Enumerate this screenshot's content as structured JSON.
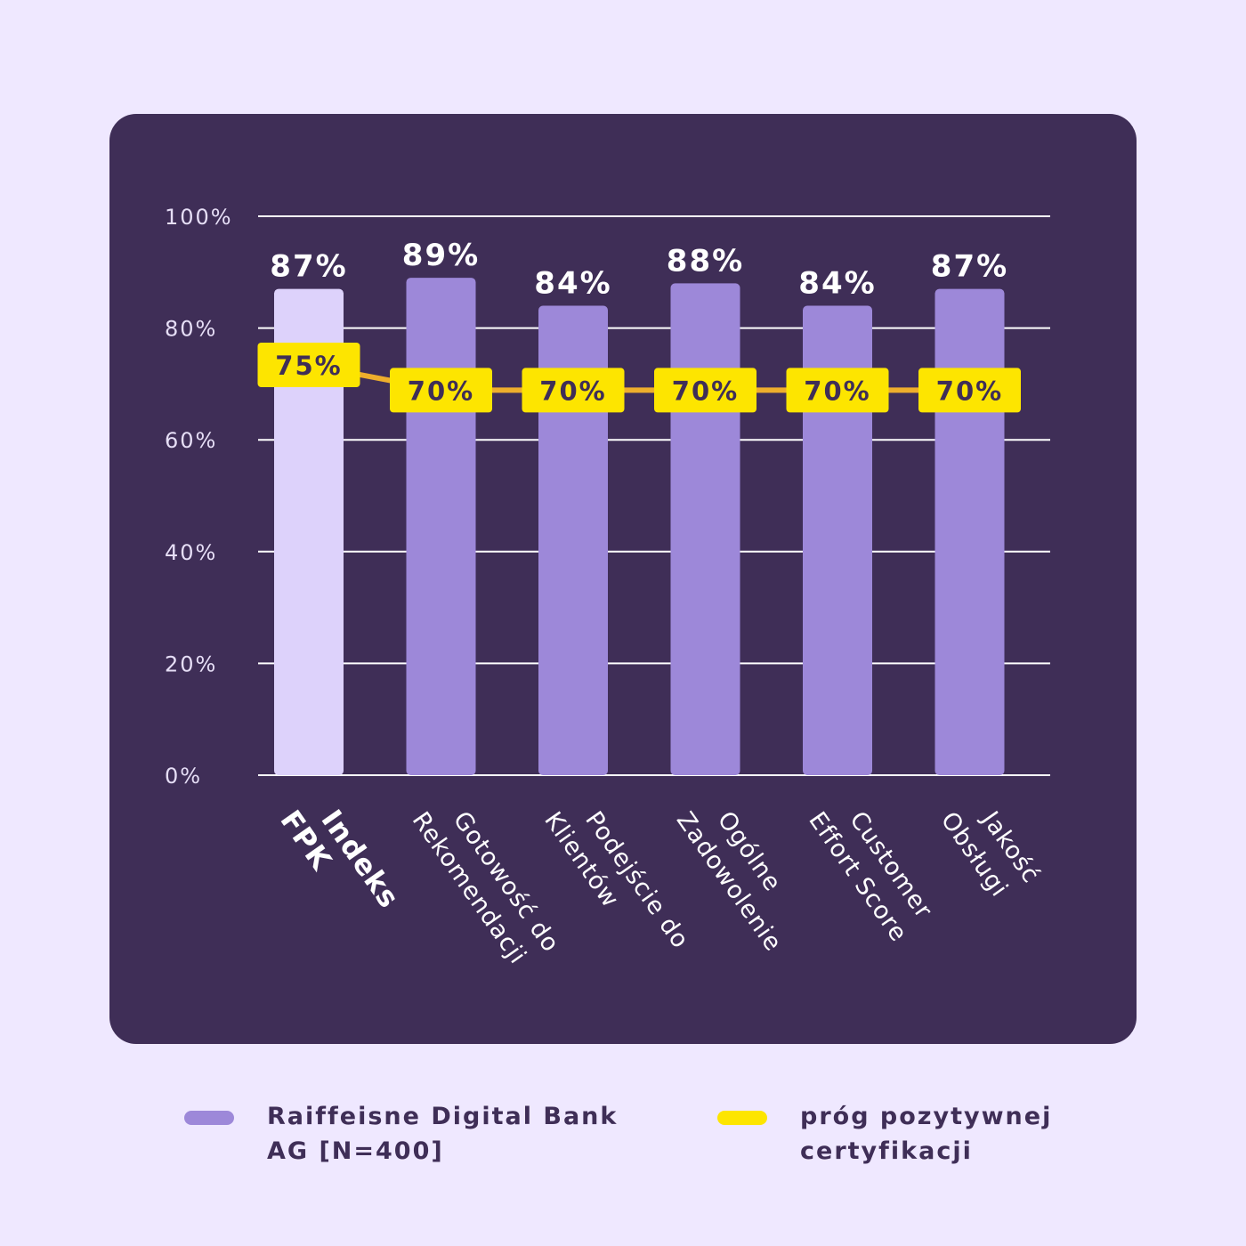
{
  "colors": {
    "background": "#efe8ff",
    "panel": "#3f2e57",
    "bar": "#9d88d9",
    "bar_highlight": "#ddd2fb",
    "threshold": "#fde500",
    "threshold_line": "#eeae2c",
    "text_light": "#ffffff",
    "axis_label": "#e6def6"
  },
  "chart_data": {
    "type": "bar",
    "categories": [
      "Indeks\nFPK",
      "Gotowość do\nRekomendacji",
      "Podejście do\nKlientów",
      "Ogólne\nZadowolenie",
      "Customer\nEffort Score",
      "Jakość\nObsługi"
    ],
    "series": [
      {
        "name": "Raiffeisne Digital Bank AG [N=400]",
        "type": "bar",
        "values": [
          87,
          89,
          84,
          88,
          84,
          87
        ],
        "labels": [
          "87%",
          "89%",
          "84%",
          "88%",
          "84%",
          "87%"
        ]
      },
      {
        "name": "próg pozytywnej certyfikacji",
        "type": "line",
        "values": [
          75,
          70,
          70,
          70,
          70,
          70
        ],
        "labels": [
          "75%",
          "70%",
          "70%",
          "70%",
          "70%",
          "70%"
        ]
      }
    ],
    "highlight_index": 0,
    "yticks": [
      "0%",
      "20%",
      "40%",
      "60%",
      "80%",
      "100%"
    ],
    "ylim": [
      0,
      100
    ],
    "grid": true,
    "legend_position": "bottom"
  },
  "legend": [
    {
      "label": "Raiffeisne Digital Bank\nAG [N=400]",
      "color": "#9d88d9"
    },
    {
      "label": "próg pozytywnej\ncertyfikacji",
      "color": "#fde500"
    }
  ]
}
